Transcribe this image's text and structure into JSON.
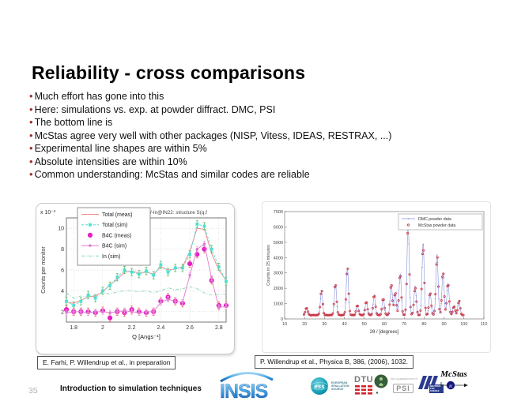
{
  "slide": {
    "title": "Reliability - cross comparisons",
    "bullets": [
      "Much effort has gone into this",
      "Here: simulations vs. exp. at powder diffract. DMC, PSI",
      "The bottom line is",
      "McStas agree very well with other packages (NISP, Vitess, IDEAS, RESTRAX, ...)",
      "Experimental line shapes are within 5%",
      "Absolute intensities are within 10%",
      "Common understanding: McStas and similar codes are reliable"
    ]
  },
  "citations": {
    "left": "E. Farhi, P. Willendrup et al., in preparation",
    "right": "P. Willendrup et al., Physica B, 386, (2006), 1032."
  },
  "footer": {
    "page_number": "35",
    "lecture_title": "Introduction to simulation techniques",
    "logos": {
      "insis": "INSIS",
      "ess_text": "ess",
      "ess_label": "EUROPEAN SPALLATION SOURCE",
      "dtu": "DTU",
      "psi": "PSI",
      "psi_label": "PAUL SCHERRER INSTITUT",
      "ill_label": "NEUTRONS FOR SCIENCE",
      "mcstas": "McStas",
      "mcstas_n": "n"
    }
  },
  "colors": {
    "bullet": "#9c2f2f",
    "ess_teal": "#0e9bb0",
    "dtu_red": "#d4222c",
    "ill_blue": "#2b3c8e",
    "mcstas_navy": "#15187a"
  },
  "chart_data": [
    {
      "type": "line",
      "title": "/-In@IN22: structure S(q,f",
      "xlabel": "Q [Angs⁻¹]",
      "ylabel": "Counts per monitor",
      "scale_label": "x 10⁻³",
      "xlim": [
        1.75,
        2.85
      ],
      "ylim": [
        1,
        11
      ],
      "xticks": [
        1.8,
        2,
        2.2,
        2.4,
        2.6,
        2.8
      ],
      "yticks": [
        2,
        4,
        6,
        8,
        10
      ],
      "grid": true,
      "legend_position": "top-left",
      "x": [
        1.75,
        1.8,
        1.85,
        1.9,
        1.95,
        2,
        2.05,
        2.1,
        2.15,
        2.2,
        2.25,
        2.3,
        2.35,
        2.4,
        2.45,
        2.5,
        2.55,
        2.6,
        2.65,
        2.7,
        2.75,
        2.8,
        2.85
      ],
      "series": [
        {
          "name": "Total (meas)",
          "color": "#f28d8d",
          "style": "line",
          "values": [
            2.9,
            2.8,
            3.1,
            3.4,
            3.5,
            3.9,
            4.6,
            5.1,
            5.8,
            5.9,
            5.7,
            5.8,
            5.6,
            6.3,
            6.0,
            6.1,
            6.3,
            7.8,
            10.0,
            9.9,
            7.6,
            6.0,
            5.0
          ]
        },
        {
          "name": "Total (sim)",
          "color": "#4ce0d2",
          "style": "dashed+square",
          "err": 0.35,
          "errcolor": "#6abf71",
          "values": [
            3.0,
            2.6,
            3.0,
            3.6,
            3.3,
            4.0,
            4.5,
            5.3,
            6.0,
            5.8,
            5.6,
            5.9,
            5.5,
            6.5,
            5.8,
            6.2,
            6.2,
            7.5,
            10.4,
            10.2,
            8.0,
            6.3,
            4.9
          ]
        },
        {
          "name": "B4C (meas)",
          "color": "#e620c0",
          "style": "circle",
          "err": 0.35,
          "errcolor": "#ef8075",
          "values": [
            2.2,
            2.0,
            2.0,
            2.0,
            1.9,
            2.1,
            1.4,
            2.0,
            1.9,
            2.2,
            2.0,
            1.9,
            2.0,
            3.0,
            3.4,
            3.0,
            2.8,
            6.6,
            7.5,
            8.0,
            5.0,
            2.6,
            2.6
          ]
        },
        {
          "name": "B4C (sim)",
          "color": "#e07ad0",
          "style": "line+dot",
          "err": 0.25,
          "errcolor": "#f0a8e4",
          "values": [
            1.9,
            2.0,
            2.0,
            1.9,
            2.0,
            2.0,
            1.9,
            2.0,
            2.1,
            2.0,
            1.9,
            2.0,
            2.0,
            2.9,
            3.2,
            3.0,
            2.9,
            5.5,
            8.0,
            8.5,
            5.2,
            2.4,
            2.5
          ]
        },
        {
          "name": "In (sim)",
          "color": "#86d8b0",
          "style": "dashdot",
          "values": [
            3.8,
            3.3,
            3.5,
            3.4,
            3.6,
            3.8,
            3.7,
            3.9,
            4.0,
            4.0,
            3.9,
            4.0,
            3.8,
            4.0,
            4.3,
            4.1,
            4.2,
            4.4,
            4.2,
            3.8,
            3.6,
            3.7,
            3.7
          ]
        }
      ]
    },
    {
      "type": "line",
      "xlabel": "2θ / [degrees]",
      "ylabel": "Counts in 25 minutes",
      "xlim": [
        10,
        110
      ],
      "ylim": [
        0,
        7000
      ],
      "xticks": [
        10,
        20,
        30,
        40,
        50,
        60,
        70,
        80,
        90,
        100,
        110
      ],
      "yticks": [
        0,
        1000,
        2000,
        3000,
        4000,
        5000,
        6000,
        7000
      ],
      "grid": false,
      "legend_position": "top-right",
      "baseline": 250,
      "peak_sigma": 0.55,
      "series": [
        {
          "name": "DMC powder data",
          "color": "#8890d8",
          "style": "line+plus"
        },
        {
          "name": "McStas powder data",
          "color": "#cc3340",
          "style": "circle"
        }
      ],
      "peaks": [
        [
          21,
          500
        ],
        [
          28.5,
          1600
        ],
        [
          35.5,
          2050
        ],
        [
          41.5,
          3100
        ],
        [
          46.5,
          650
        ],
        [
          51,
          900
        ],
        [
          55,
          1300
        ],
        [
          59.5,
          1100
        ],
        [
          63.5,
          2000
        ],
        [
          65.5,
          1450
        ],
        [
          68,
          2700
        ],
        [
          72,
          6050
        ],
        [
          75.5,
          1900
        ],
        [
          79.5,
          4700
        ],
        [
          83,
          1450
        ],
        [
          86.5,
          4000
        ],
        [
          89.5,
          2800
        ],
        [
          92,
          2100
        ],
        [
          95,
          600
        ],
        [
          97.5,
          950
        ]
      ]
    }
  ]
}
